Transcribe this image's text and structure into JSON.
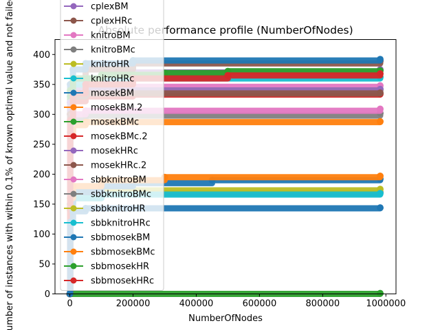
{
  "chart_data": {
    "type": "line",
    "title": "Absolute performance profile (NumberOfNodes)",
    "xlabel": "NumberOfNodes",
    "ylabel": "Number of instances with within 0.1% of known optimal value and not failed",
    "xlim": [
      -47000,
      1032000
    ],
    "ylim": [
      0,
      425
    ],
    "xticks": [
      0,
      200000,
      400000,
      600000,
      800000,
      1000000
    ],
    "xtick_labels": [
      "0",
      "200000",
      "400000",
      "600000",
      "800000",
      "1000000"
    ],
    "yticks": [
      0,
      50,
      100,
      150,
      200,
      250,
      300,
      350,
      400
    ],
    "ytick_labels": [
      "0",
      "50",
      "100",
      "150",
      "200",
      "250",
      "300",
      "350",
      "400"
    ],
    "grid": false,
    "legend_position": "upper-left",
    "x_max": 982000,
    "series": [
      {
        "name": "cplexBM",
        "color": "#9467bd",
        "points": [
          [
            0,
            0
          ],
          [
            1000,
            320
          ],
          [
            10000,
            345
          ],
          [
            50000,
            360
          ],
          [
            150000,
            370
          ],
          [
            982000,
            375
          ]
        ]
      },
      {
        "name": "cplexHRc",
        "color": "#8c564b",
        "points": [
          [
            0,
            0
          ],
          [
            1000,
            330
          ],
          [
            10000,
            360
          ],
          [
            50000,
            375
          ],
          [
            200000,
            385
          ],
          [
            982000,
            389
          ]
        ]
      },
      {
        "name": "knitroBM",
        "color": "#e377c2",
        "points": [
          [
            0,
            0
          ],
          [
            1000,
            300
          ],
          [
            10000,
            330
          ],
          [
            50000,
            340
          ],
          [
            200000,
            346
          ],
          [
            982000,
            348
          ]
        ]
      },
      {
        "name": "knitroBMc",
        "color": "#7f7f7f",
        "points": [
          [
            0,
            0
          ],
          [
            1000,
            270
          ],
          [
            10000,
            290
          ],
          [
            50000,
            298
          ],
          [
            982000,
            302
          ]
        ]
      },
      {
        "name": "knitroHR",
        "color": "#bcbd22",
        "points": [
          [
            0,
            0
          ],
          [
            1000,
            310
          ],
          [
            10000,
            335
          ],
          [
            50000,
            340
          ],
          [
            982000,
            341
          ]
        ]
      },
      {
        "name": "knitroHRc",
        "color": "#17becf",
        "points": [
          [
            0,
            0
          ],
          [
            1000,
            330
          ],
          [
            10000,
            350
          ],
          [
            50000,
            360
          ],
          [
            982000,
            362
          ]
        ]
      },
      {
        "name": "mosekBM",
        "color": "#1f77b4",
        "points": [
          [
            0,
            0
          ],
          [
            1000,
            350
          ],
          [
            10000,
            375
          ],
          [
            50000,
            385
          ],
          [
            200000,
            390
          ],
          [
            982000,
            392
          ]
        ]
      },
      {
        "name": "mosekBM.2",
        "color": "#ff7f0e",
        "points": [
          [
            0,
            0
          ],
          [
            1000,
            265
          ],
          [
            10000,
            282
          ],
          [
            50000,
            287
          ],
          [
            982000,
            288
          ]
        ]
      },
      {
        "name": "mosekBMc",
        "color": "#2ca02c",
        "points": [
          [
            0,
            0
          ],
          [
            1000,
            340
          ],
          [
            10000,
            360
          ],
          [
            100000,
            366
          ],
          [
            300000,
            369
          ],
          [
            500000,
            372
          ],
          [
            982000,
            373
          ]
        ]
      },
      {
        "name": "mosekBMc.2",
        "color": "#d62728",
        "points": [
          [
            0,
            0
          ],
          [
            1000,
            300
          ],
          [
            10000,
            322
          ],
          [
            50000,
            330
          ],
          [
            200000,
            333
          ],
          [
            982000,
            334
          ]
        ]
      },
      {
        "name": "mosekHRc",
        "color": "#9467bd",
        "points": [
          [
            0,
            0
          ],
          [
            1000,
            320
          ],
          [
            10000,
            335
          ],
          [
            50000,
            340
          ],
          [
            982000,
            342
          ]
        ]
      },
      {
        "name": "mosekHRc.2",
        "color": "#8c564b",
        "points": [
          [
            0,
            0
          ],
          [
            1000,
            300
          ],
          [
            10000,
            330
          ],
          [
            50000,
            335
          ],
          [
            982000,
            336
          ]
        ]
      },
      {
        "name": "sbbknitroBM",
        "color": "#e377c2",
        "points": [
          [
            0,
            0
          ],
          [
            1000,
            285
          ],
          [
            10000,
            300
          ],
          [
            50000,
            306
          ],
          [
            982000,
            309
          ]
        ]
      },
      {
        "name": "sbbknitroBMc",
        "color": "#7f7f7f",
        "points": [
          [
            0,
            0
          ],
          [
            1000,
            140
          ],
          [
            10000,
            160
          ],
          [
            100000,
            168
          ],
          [
            982000,
            170
          ]
        ]
      },
      {
        "name": "sbbknitroHR",
        "color": "#bcbd22",
        "points": [
          [
            0,
            0
          ],
          [
            1000,
            150
          ],
          [
            10000,
            168
          ],
          [
            100000,
            173
          ],
          [
            982000,
            175
          ]
        ]
      },
      {
        "name": "sbbknitroHRc",
        "color": "#17becf",
        "points": [
          [
            0,
            0
          ],
          [
            1000,
            145
          ],
          [
            10000,
            160
          ],
          [
            100000,
            166
          ],
          [
            982000,
            168
          ]
        ]
      },
      {
        "name": "sbbmosekBM",
        "color": "#1f77b4",
        "points": [
          [
            0,
            0
          ],
          [
            1000,
            150
          ],
          [
            10000,
            170
          ],
          [
            100000,
            180
          ],
          [
            200000,
            185
          ],
          [
            450000,
            190
          ],
          [
            982000,
            192
          ]
        ]
      },
      {
        "name": "sbbmosekBMc",
        "color": "#ff7f0e",
        "points": [
          [
            0,
            0
          ],
          [
            1000,
            160
          ],
          [
            10000,
            180
          ],
          [
            100000,
            190
          ],
          [
            300000,
            195
          ],
          [
            982000,
            197
          ]
        ]
      },
      {
        "name": "sbbmosekHR",
        "color": "#2ca02c",
        "points": [
          [
            0,
            0
          ],
          [
            982000,
            1
          ]
        ]
      },
      {
        "name": "sbbmosekHRc",
        "color": "#d62728",
        "points": [
          [
            0,
            0
          ],
          [
            1000,
            290
          ],
          [
            10000,
            335
          ],
          [
            50000,
            350
          ],
          [
            200000,
            360
          ],
          [
            500000,
            365
          ],
          [
            982000,
            368
          ]
        ]
      },
      {
        "name": "",
        "color": "#1f77b4",
        "points": [
          [
            0,
            0
          ],
          [
            1000,
            120
          ],
          [
            10000,
            138
          ],
          [
            50000,
            143
          ],
          [
            982000,
            144
          ]
        ]
      }
    ]
  }
}
